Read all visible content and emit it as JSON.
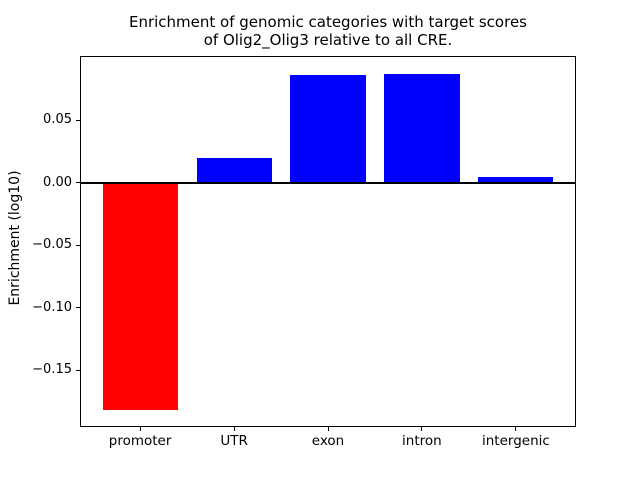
{
  "figure": {
    "title_line1": "Enrichment of genomic categories with target scores",
    "title_line2": "of Olig2_Olig3 relative to all CRE.",
    "ylabel": "Enrichment (log10)"
  },
  "chart_data": {
    "type": "bar",
    "title": "Enrichment of genomic categories with target scores of Olig2_Olig3 relative to all CRE.",
    "xlabel": "",
    "ylabel": "Enrichment (log10)",
    "categories": [
      "promoter",
      "UTR",
      "exon",
      "intron",
      "intergenic"
    ],
    "values": [
      -0.182,
      0.02,
      0.086,
      0.087,
      0.005
    ],
    "bar_colors": [
      "#ff0000",
      "#0000ff",
      "#0000ff",
      "#0000ff",
      "#0000ff"
    ],
    "positive_color": "#0000ff",
    "negative_color": "#ff0000",
    "bar_width": 0.8,
    "xlim": [
      -0.64,
      4.64
    ],
    "ylim": [
      -0.1957,
      0.1015
    ],
    "yticks": [
      {
        "value": 0.05,
        "label": "0.05"
      },
      {
        "value": 0.0,
        "label": "0.00"
      },
      {
        "value": -0.05,
        "label": "−0.05"
      },
      {
        "value": -0.1,
        "label": "−0.10"
      },
      {
        "value": -0.15,
        "label": "−0.15"
      }
    ],
    "grid": false,
    "legend": null,
    "zero_line": {
      "value": 0,
      "color": "#000000",
      "linewidth": 2
    },
    "spine_color": "#000000"
  }
}
